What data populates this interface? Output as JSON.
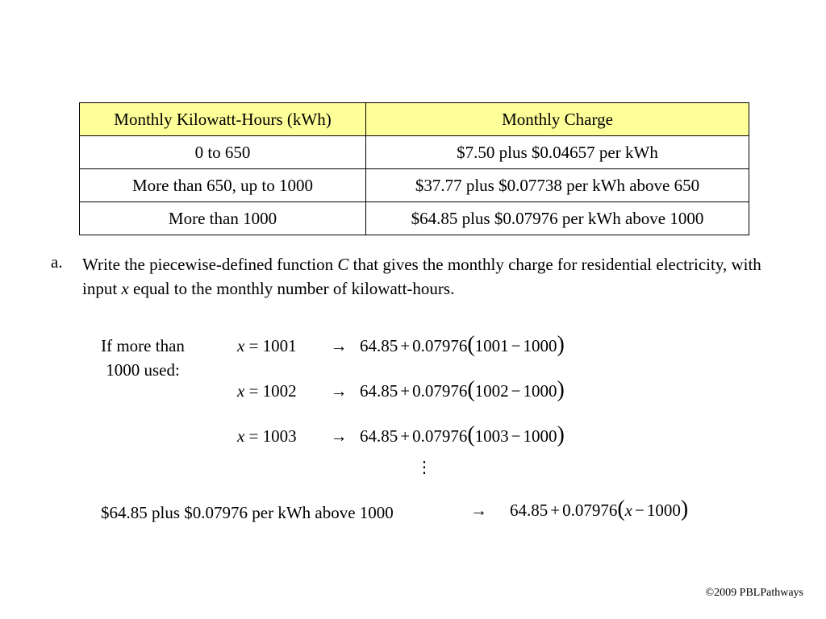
{
  "table": {
    "headers": [
      "Monthly Kilowatt-Hours (kWh)",
      "Monthly Charge"
    ],
    "rows": [
      [
        "0 to 650",
        "$7.50 plus $0.04657 per kWh"
      ],
      [
        "More than 650, up to 1000",
        "$37.77 plus $0.07738 per kWh above 650"
      ],
      [
        "More than 1000",
        "$64.85 plus $0.07976 per kWh above 1000"
      ]
    ],
    "header_color": "#ffff99"
  },
  "question": {
    "letter": "a.",
    "text_1": "Write the piecewise-defined function ",
    "var_c": "C",
    "text_2": " that gives the monthly charge for residential electricity, with input ",
    "var_x": "x",
    "text_3": " equal to the monthly number of kilowatt-hours."
  },
  "side_label": {
    "line1": "If more than",
    "line2": "1000 used:"
  },
  "math": {
    "var": "x",
    "equals": "=",
    "arrow": "→",
    "base": "64.85",
    "plus": "+",
    "rate": "0.07976",
    "minus": "−",
    "threshold": "1000",
    "rows": [
      {
        "x": "1001"
      },
      {
        "x": "1002"
      },
      {
        "x": "1003"
      }
    ],
    "vdots": "⋮"
  },
  "final": {
    "label": "$64.85 plus $0.07976 per kWh above 1000",
    "arrow": "→",
    "var": "x"
  },
  "copyright": "©2009 PBLPathways"
}
